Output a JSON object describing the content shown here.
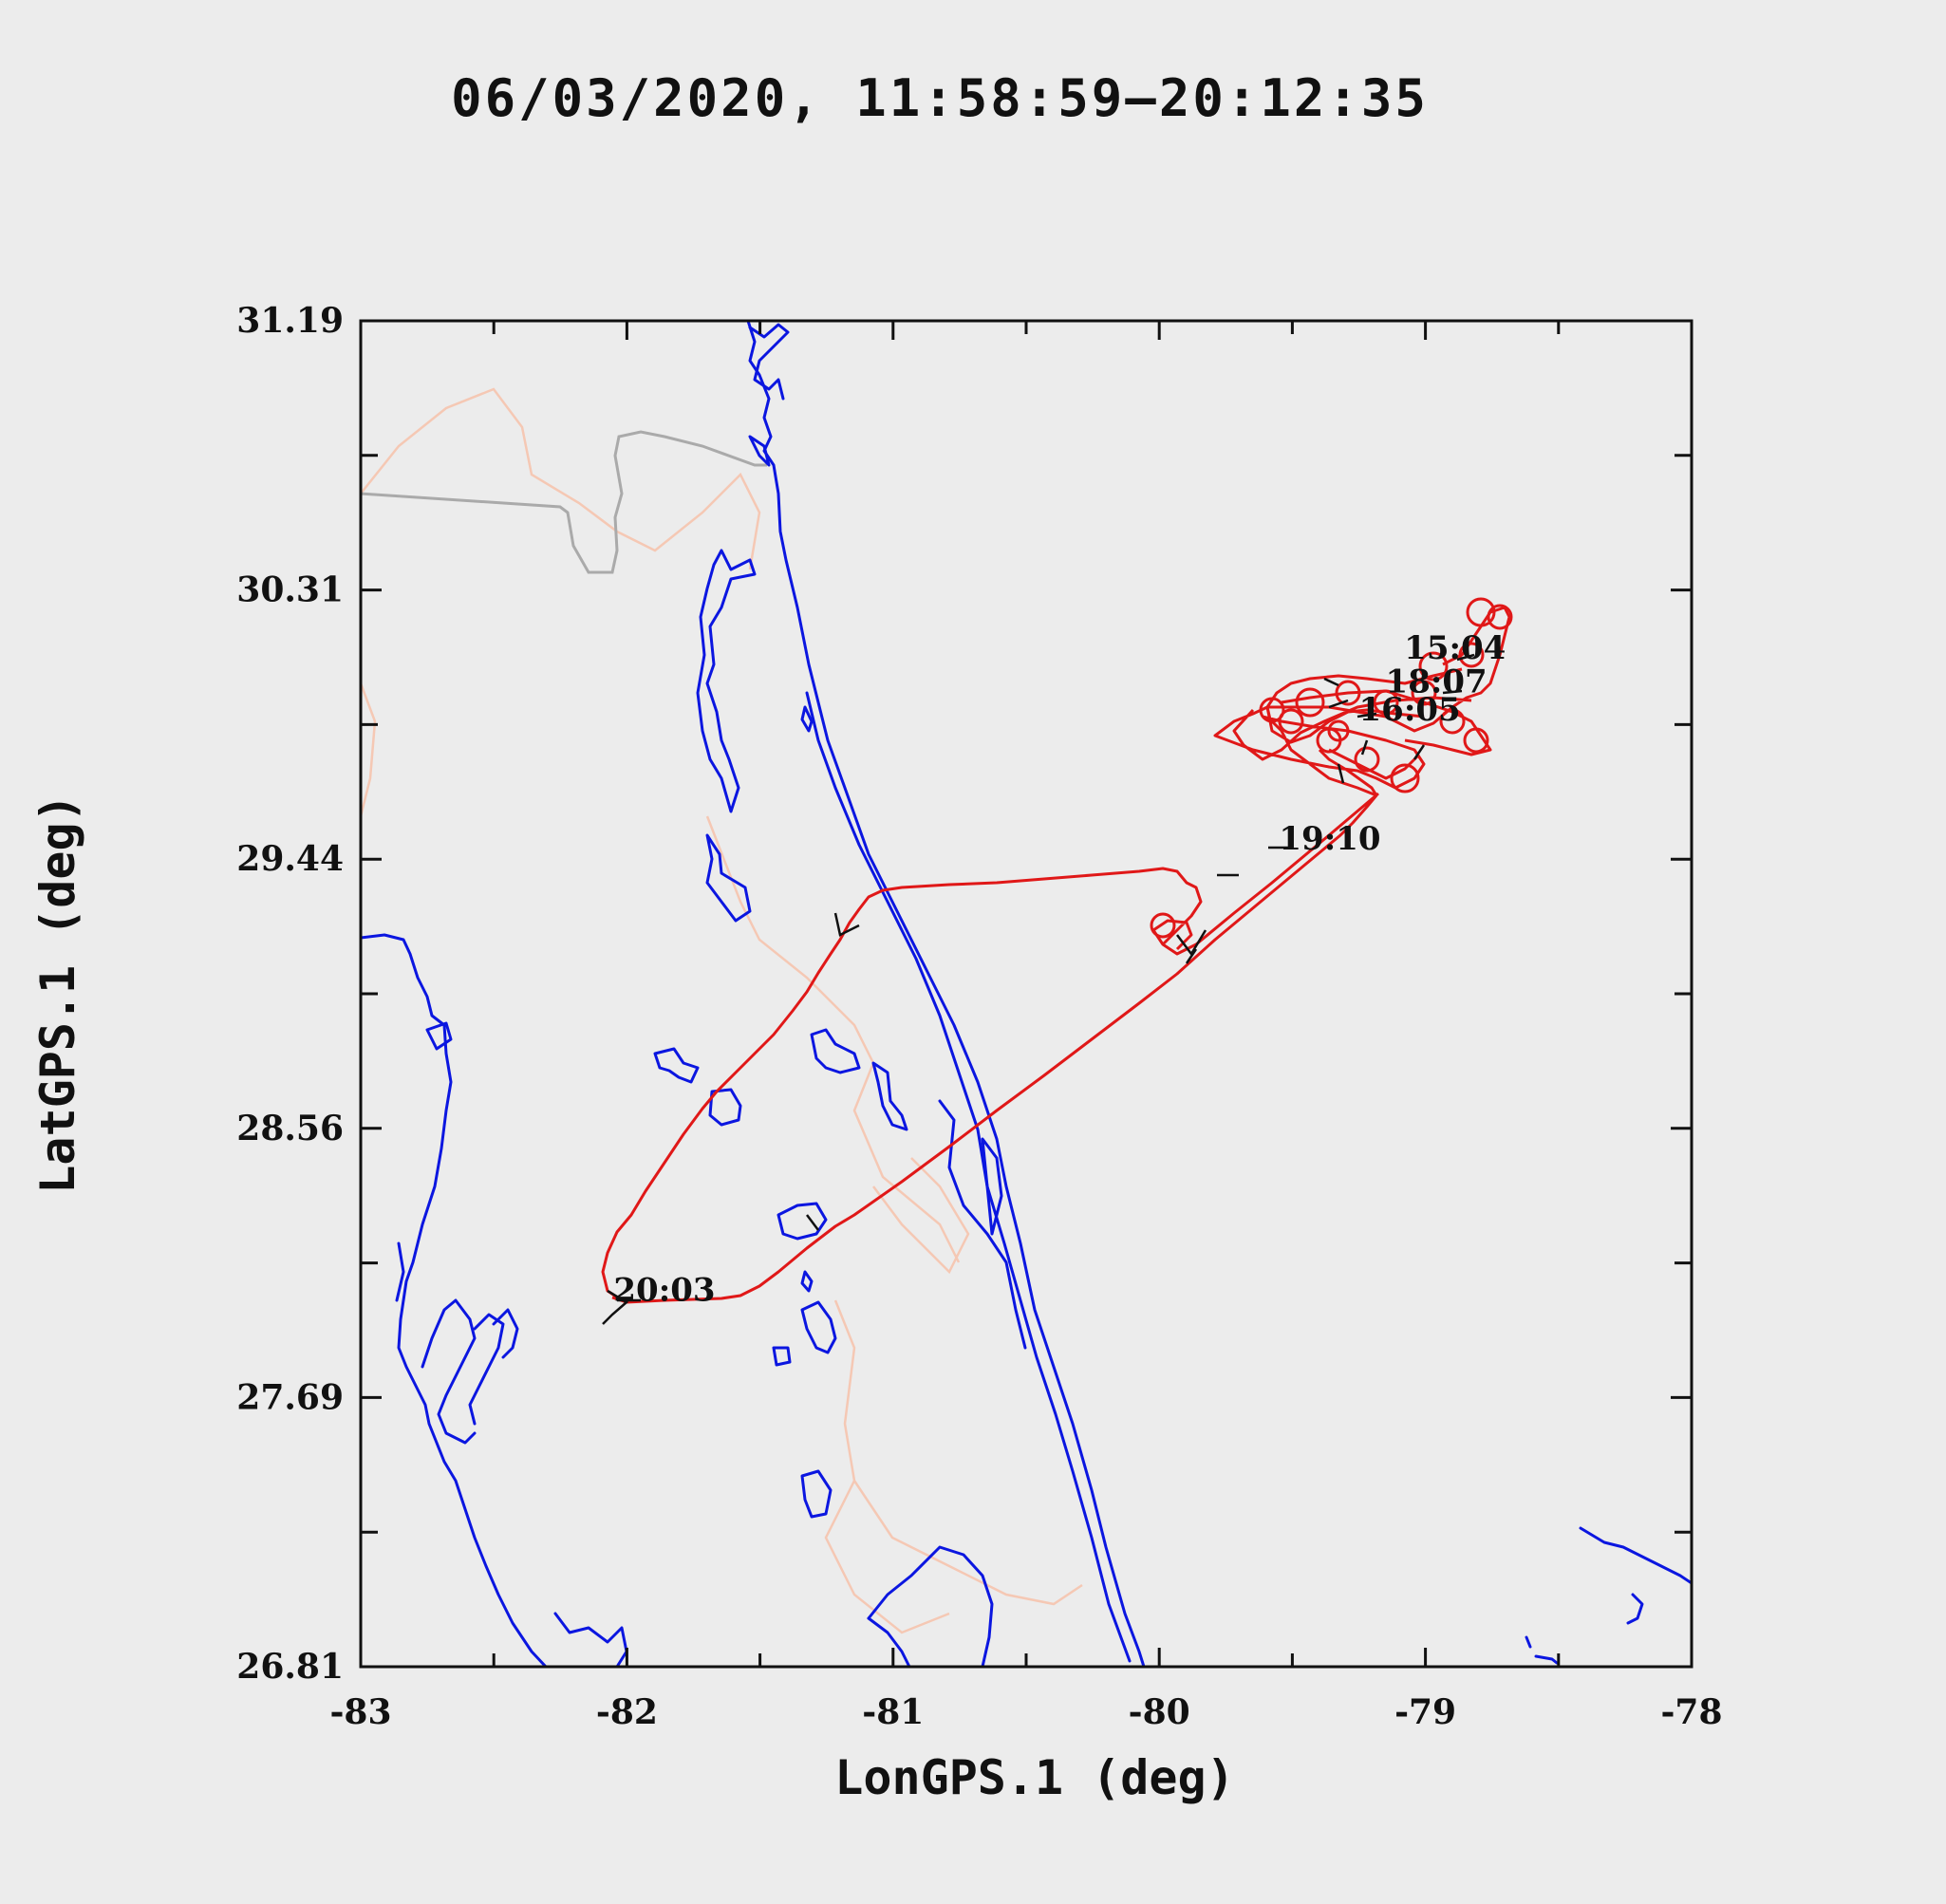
{
  "colors": {
    "background": "#ececec",
    "coastline": "#0b16e0",
    "flight_track": "#e01818",
    "state_border": "#aaaaaa",
    "county_border": "#f5c8b4",
    "axis": "#111111"
  },
  "chart_data": {
    "type": "line",
    "title": "06/03/2020, 11:58:59–20:12:35",
    "xlabel": "LonGPS.1 (deg)",
    "ylabel": "LatGPS.1 (deg)",
    "xlim": [
      -83,
      -78
    ],
    "ylim": [
      26.81,
      31.19
    ],
    "x_ticks": [
      "-83",
      "-82",
      "-81",
      "-80",
      "-79",
      "-78"
    ],
    "y_ticks": [
      "26.81",
      "27.69",
      "28.56",
      "29.44",
      "30.31",
      "31.19"
    ],
    "grid": false,
    "time_labels": [
      {
        "text": "15:04",
        "lon": -79.08,
        "lat": 30.09
      },
      {
        "text": "18:07",
        "lon": -79.15,
        "lat": 29.98
      },
      {
        "text": "16:05",
        "lon": -79.25,
        "lat": 29.89
      },
      {
        "text": "19:10",
        "lon": -79.55,
        "lat": 29.47
      },
      {
        "text": "20:03",
        "lon": -82.05,
        "lat": 28.0
      }
    ]
  }
}
